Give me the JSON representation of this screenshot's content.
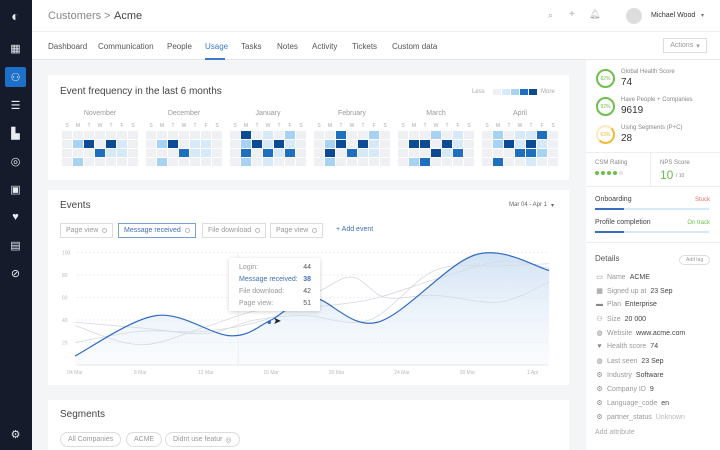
{
  "header": {
    "breadcrumb_root": "Customers",
    "breadcrumb_sep": ">",
    "breadcrumb_current": "Acme",
    "user_name": "Michael Wood"
  },
  "tabs": [
    {
      "label": "Dashboard"
    },
    {
      "label": "Communication"
    },
    {
      "label": "People"
    },
    {
      "label": "Usage"
    },
    {
      "label": "Tasks"
    },
    {
      "label": "Notes"
    },
    {
      "label": "Activity"
    },
    {
      "label": "Tickets"
    },
    {
      "label": "Custom data"
    }
  ],
  "actions_label": "Actions",
  "heatmap": {
    "title": "Event frequency in the last 6 months",
    "less": "Less",
    "more": "More",
    "dow": [
      "S",
      "M",
      "T",
      "W",
      "T",
      "F",
      "S"
    ],
    "colors": [
      "#eef0f3",
      "#d6e9f8",
      "#a8d2f3",
      "#1f6fc0",
      "#0d4a94"
    ],
    "months": [
      {
        "name": "November",
        "cells": [
          [
            0,
            0,
            0,
            0,
            0,
            0,
            0
          ],
          [
            0,
            2,
            4,
            0,
            4,
            1,
            0
          ],
          [
            0,
            0,
            0,
            3,
            1,
            1,
            0
          ],
          [
            0,
            2,
            0,
            0,
            0,
            0,
            0
          ]
        ]
      },
      {
        "name": "December",
        "cells": [
          [
            0,
            0,
            0,
            0,
            0,
            0,
            0
          ],
          [
            0,
            2,
            4,
            0,
            1,
            1,
            0
          ],
          [
            0,
            0,
            0,
            3,
            1,
            1,
            0
          ],
          [
            0,
            2,
            0,
            0,
            0,
            0,
            0
          ]
        ]
      },
      {
        "name": "January",
        "cells": [
          [
            0,
            4,
            0,
            1,
            0,
            2,
            0
          ],
          [
            0,
            2,
            4,
            1,
            4,
            1,
            0
          ],
          [
            0,
            3,
            0,
            3,
            1,
            3,
            0
          ],
          [
            0,
            2,
            0,
            1,
            0,
            0,
            0
          ]
        ]
      },
      {
        "name": "February",
        "cells": [
          [
            0,
            0,
            3,
            0,
            0,
            2,
            0
          ],
          [
            0,
            2,
            4,
            0,
            4,
            1,
            0
          ],
          [
            0,
            4,
            0,
            3,
            1,
            1,
            0
          ],
          [
            0,
            2,
            0,
            0,
            0,
            0,
            0
          ]
        ]
      },
      {
        "name": "March",
        "cells": [
          [
            0,
            0,
            0,
            2,
            0,
            1,
            0
          ],
          [
            0,
            4,
            4,
            0,
            4,
            1,
            0
          ],
          [
            0,
            0,
            0,
            4,
            1,
            3,
            0
          ],
          [
            0,
            2,
            3,
            0,
            0,
            0,
            0
          ]
        ]
      },
      {
        "name": "April",
        "cells": [
          [
            0,
            2,
            0,
            1,
            1,
            3,
            0
          ],
          [
            0,
            2,
            4,
            1,
            4,
            1,
            0
          ],
          [
            0,
            0,
            0,
            3,
            3,
            2,
            0
          ],
          [
            0,
            3,
            0,
            0,
            1,
            0,
            0
          ]
        ]
      }
    ]
  },
  "events": {
    "title": "Events",
    "date_range": "Mar 04 - Apr 1",
    "chips": [
      {
        "label": "Page view"
      },
      {
        "label": "Message received"
      },
      {
        "label": "File download"
      },
      {
        "label": "Page view"
      }
    ],
    "add_event": "+ Add event",
    "tooltip": [
      {
        "label": "Login:",
        "value": "44"
      },
      {
        "label": "Message received:",
        "value": "38"
      },
      {
        "label": "File download:",
        "value": "42"
      },
      {
        "label": "Page view:",
        "value": "51"
      }
    ]
  },
  "chart_data": {
    "type": "line",
    "x_unit": "days since 04 Mar",
    "ylim": [
      0,
      100
    ],
    "yticks": [
      "20",
      "40",
      "60",
      "80",
      "100"
    ],
    "xticks": [
      "04 Mar",
      "8 Mar",
      "12 Mar",
      "16 Mar",
      "20 Mar",
      "24 Mar",
      "28 Mar",
      "1 Apr"
    ],
    "series": [
      {
        "name": "Message received",
        "highlight": true,
        "color": "#2f6bc4",
        "points": [
          [
            0,
            8
          ],
          [
            5,
            44
          ],
          [
            9.5,
            26
          ],
          [
            12,
            40
          ],
          [
            14.5,
            60
          ],
          [
            18.5,
            38
          ],
          [
            24.5,
            98
          ],
          [
            29,
            84
          ]
        ]
      },
      {
        "name": "Login",
        "points": [
          [
            0,
            38
          ],
          [
            4,
            33
          ],
          [
            8,
            28
          ],
          [
            11,
            40
          ],
          [
            14,
            44
          ],
          [
            18,
            40
          ],
          [
            22,
            84
          ],
          [
            26,
            88
          ],
          [
            29,
            90
          ]
        ]
      },
      {
        "name": "File download",
        "points": [
          [
            0,
            20
          ],
          [
            4,
            30
          ],
          [
            8,
            30
          ],
          [
            12,
            42
          ],
          [
            15,
            66
          ],
          [
            17,
            78
          ],
          [
            19,
            60
          ],
          [
            22,
            62
          ],
          [
            26,
            56
          ],
          [
            29,
            74
          ]
        ]
      },
      {
        "name": "Page view",
        "points": [
          [
            0,
            35
          ],
          [
            4,
            18
          ],
          [
            8,
            34
          ],
          [
            11,
            48
          ],
          [
            14,
            51
          ],
          [
            18,
            58
          ],
          [
            22,
            76
          ],
          [
            26,
            92
          ],
          [
            29,
            86
          ]
        ]
      }
    ]
  },
  "segments": {
    "title": "Segments",
    "items": [
      {
        "label": "All Companies"
      },
      {
        "label": "ACME"
      },
      {
        "label": "Didnt use featur"
      }
    ]
  },
  "right": {
    "metrics": [
      {
        "pct": "82%",
        "label": "Global Health Score",
        "value": "74",
        "color": "#6cc04a"
      },
      {
        "pct": "92%",
        "label": "Have People + Companies",
        "value": "9619",
        "color": "#6cc04a"
      },
      {
        "pct": "63%",
        "label": "Using Segments (P+C)",
        "value": "28",
        "color": "#f5b730"
      }
    ],
    "csm_label": "CSM Rating",
    "csm_rating": 4,
    "csm_max": 5,
    "nps_label": "NPS Score",
    "nps_value": "10",
    "nps_max": "/ 10",
    "progress": [
      {
        "label": "Onboarding",
        "status": "Stuck",
        "status_color": "#f07070",
        "fraction": 0.25
      },
      {
        "label": "Profile completion",
        "status": "On track",
        "status_color": "#6cc04a",
        "fraction": 0.25
      }
    ],
    "details_title": "Details",
    "add_tag": "Add tag",
    "details": [
      {
        "icon": "▭",
        "key": "Name",
        "value": "ACME"
      },
      {
        "icon": "▦",
        "key": "Signed up at",
        "value": "23 Sep"
      },
      {
        "icon": "▬",
        "key": "Plan",
        "value": "Enterprise"
      },
      {
        "icon": "⚇",
        "key": "Size",
        "value": "20 000"
      },
      {
        "icon": "◍",
        "key": "Website",
        "value": "www.acme.com"
      },
      {
        "icon": "♥",
        "key": "Health score",
        "value": "74"
      },
      {
        "icon": "◍",
        "key": "Last seen",
        "value": "23 Sep"
      },
      {
        "icon": "⚙",
        "key": "Industry",
        "value": "Software"
      },
      {
        "icon": "⚙",
        "key": "Company ID",
        "value": "9"
      },
      {
        "icon": "⚙",
        "key": "Language_code",
        "value": "en"
      },
      {
        "icon": "⚙",
        "key": "partner_status",
        "value": "Unknown"
      }
    ],
    "add_attribute": "Add attribute"
  }
}
